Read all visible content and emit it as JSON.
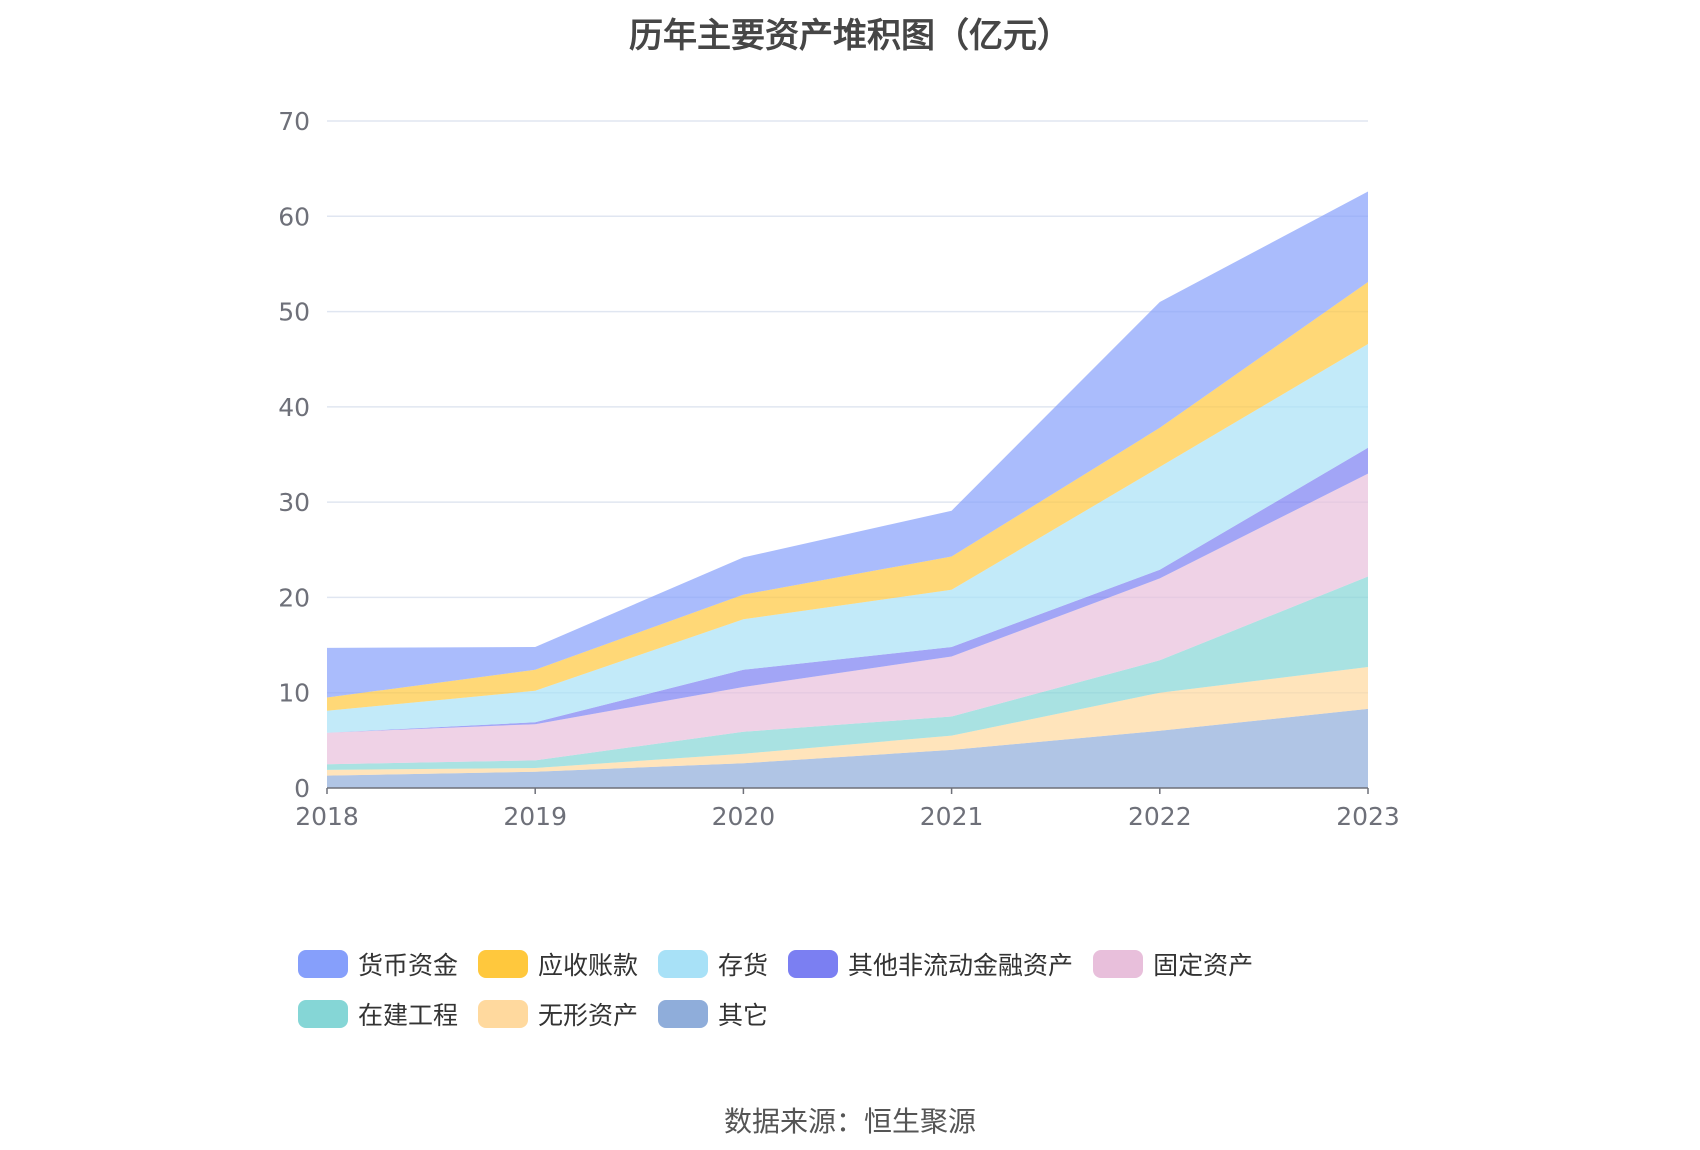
{
  "chart_data": {
    "type": "area",
    "stacked": true,
    "title": "历年主要资产堆积图（亿元）",
    "x": [
      "2018",
      "2019",
      "2020",
      "2021",
      "2022",
      "2023"
    ],
    "ylim": [
      0,
      70
    ],
    "yticks": [
      0,
      10,
      20,
      30,
      40,
      50,
      60,
      70
    ],
    "grid": true,
    "legend_position": "bottom",
    "series": [
      {
        "name": "其它",
        "color": "#8FADDA",
        "values": [
          1.3,
          1.7,
          2.6,
          4.0,
          6.0,
          8.3
        ]
      },
      {
        "name": "无形资产",
        "color": "#FFD99E",
        "values": [
          0.6,
          0.4,
          1.0,
          1.5,
          4.0,
          4.4
        ]
      },
      {
        "name": "在建工程",
        "color": "#85D6D6",
        "values": [
          0.6,
          0.8,
          2.3,
          2.0,
          3.4,
          9.5
        ]
      },
      {
        "name": "固定资产",
        "color": "#E8BFDB",
        "values": [
          3.3,
          3.8,
          4.7,
          6.3,
          8.6,
          10.8
        ]
      },
      {
        "name": "其他非流动金融资产",
        "color": "#7B7FF2",
        "values": [
          0.0,
          0.2,
          1.8,
          1.0,
          0.9,
          2.7
        ]
      },
      {
        "name": "存货",
        "color": "#A8E1F7",
        "values": [
          2.3,
          3.3,
          5.3,
          6.0,
          10.8,
          10.9
        ]
      },
      {
        "name": "应收账款",
        "color": "#FFC83D",
        "values": [
          1.4,
          2.2,
          2.6,
          3.5,
          4.1,
          6.5
        ]
      },
      {
        "name": "货币资金",
        "color": "#869FFB",
        "values": [
          5.2,
          2.4,
          3.9,
          4.8,
          13.2,
          9.5
        ]
      }
    ],
    "legend_order": [
      "货币资金",
      "应收账款",
      "存货",
      "其他非流动金融资产",
      "固定资产",
      "在建工程",
      "无形资产",
      "其它"
    ]
  },
  "source": "数据来源：恒生聚源"
}
